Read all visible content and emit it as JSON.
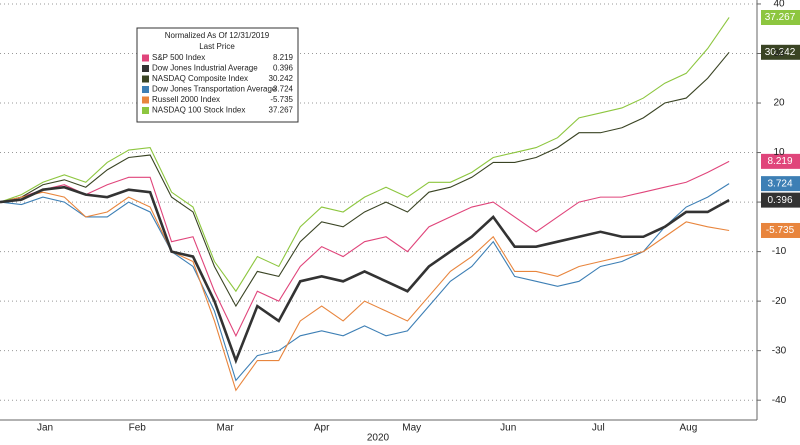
{
  "chart_data": {
    "type": "line",
    "legend_title": "Normalized As Of 12/31/2019",
    "legend_subtitle": "Last Price",
    "x_label": "2020",
    "x": [
      0,
      1,
      2,
      3,
      4,
      5,
      6,
      7,
      8,
      9,
      10,
      11,
      12,
      13,
      14,
      15,
      16,
      17,
      18,
      19,
      20,
      21,
      22,
      23,
      24,
      25,
      26,
      27,
      28,
      29,
      30,
      31,
      32,
      33,
      34
    ],
    "xlim": [
      0,
      35.3
    ],
    "xticks": [
      {
        "value": 2.1,
        "label": "Jan"
      },
      {
        "value": 6.4,
        "label": "Feb"
      },
      {
        "value": 10.5,
        "label": "Mar"
      },
      {
        "value": 15,
        "label": "Apr"
      },
      {
        "value": 19.2,
        "label": "May"
      },
      {
        "value": 23.7,
        "label": "Jun"
      },
      {
        "value": 27.9,
        "label": "Jul"
      },
      {
        "value": 32.1,
        "label": "Aug"
      }
    ],
    "ylim": [
      -44,
      40.8
    ],
    "yticks": [
      -40,
      -30,
      -20,
      -10,
      0,
      10,
      20,
      30,
      40
    ],
    "grid": true,
    "series": [
      {
        "name": "S&P 500 Index",
        "color": "#e0457b",
        "values": [
          0,
          1,
          2.5,
          3.5,
          1.5,
          3.5,
          5,
          5,
          -8,
          -7,
          -18,
          -27,
          -18,
          -20,
          -13,
          -9,
          -11,
          -8,
          -7,
          -10,
          -5,
          -3,
          -1,
          0,
          -3,
          -6,
          -3,
          0,
          1,
          1,
          2,
          3,
          4,
          6,
          8.219
        ]
      },
      {
        "name": "Dow Jones Industrial Average",
        "color": "#333333",
        "values": [
          0,
          0.5,
          2.5,
          3,
          1.5,
          1,
          2.5,
          2,
          -10,
          -11,
          -20,
          -32,
          -21,
          -24,
          -16,
          -15,
          -16,
          -14,
          -16,
          -18,
          -13,
          -10,
          -7,
          -3,
          -9,
          -9,
          -8,
          -7,
          -6,
          -7,
          -7,
          -5,
          -2,
          -2,
          0.396
        ]
      },
      {
        "name": "NASDAQ Composite Index",
        "color": "#3a4424",
        "values": [
          0,
          1,
          3.5,
          4.5,
          3,
          6.5,
          9,
          9.5,
          1,
          -2,
          -13,
          -21,
          -14,
          -15,
          -8,
          -4,
          -5,
          -2,
          0,
          -2,
          2,
          3,
          5,
          8,
          8,
          9,
          11,
          14,
          14,
          15,
          17,
          20,
          21,
          25,
          30.242
        ]
      },
      {
        "name": "Dow Jones Transportation Average",
        "color": "#3d7fb5",
        "values": [
          0,
          -0.5,
          1,
          0,
          -3,
          -3,
          0,
          -2,
          -10,
          -13,
          -22,
          -36,
          -31,
          -30,
          -27,
          -26,
          -27,
          -25,
          -27,
          -26,
          -21,
          -16,
          -13,
          -8,
          -15,
          -16,
          -17,
          -16,
          -13,
          -12,
          -10,
          -5,
          -1,
          1,
          3.724
        ]
      },
      {
        "name": "Russell 2000 Index",
        "color": "#e8853d",
        "values": [
          0,
          1,
          2,
          1,
          -3,
          -2,
          1,
          -1,
          -10,
          -12,
          -24,
          -38,
          -32,
          -32,
          -24,
          -21,
          -24,
          -20,
          -22,
          -24,
          -19,
          -14,
          -11,
          -7,
          -14,
          -14,
          -15,
          -13,
          -12,
          -11,
          -10,
          -7,
          -4,
          -5,
          -5.735
        ]
      },
      {
        "name": "NASDAQ 100 Stock Index",
        "color": "#8dc63f",
        "values": [
          0,
          1.5,
          4,
          5.5,
          4,
          8,
          10.5,
          11,
          2,
          -1,
          -12,
          -18,
          -11,
          -13,
          -5,
          -1,
          -2,
          1,
          3,
          1,
          4,
          4,
          6,
          9,
          10,
          11,
          13,
          17,
          18,
          19,
          21,
          24,
          26,
          31,
          37.267
        ]
      }
    ]
  }
}
